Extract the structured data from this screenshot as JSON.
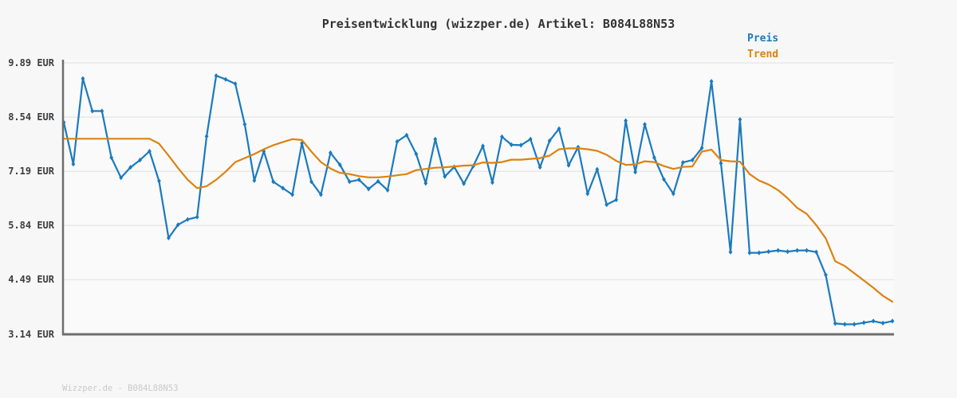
{
  "title": "Preisentwicklung (wizzper.de) Artikel: B084L88N53",
  "footer": "Wizzper.de - B084L88N53",
  "legend": {
    "items": [
      {
        "label": "Preis",
        "color": "#1a7abf"
      },
      {
        "label": "Trend",
        "color": "#dd820f"
      }
    ]
  },
  "colors": {
    "background": "#f7f7f7",
    "plot_background": "#fafafa",
    "gridline": "#e8e8e8",
    "axis_spine": "#6e6e6e",
    "title_text": "#333333",
    "tick_text": "#3d3d3d",
    "footer_text": "#c9c9c9",
    "price_line": "#1a7abf",
    "trend_line": "#dd820f"
  },
  "chart_data": {
    "type": "line",
    "title": "Preisentwicklung (wizzper.de) Artikel: B084L88N53",
    "xlabel": "",
    "ylabel": "",
    "x_type": "even-index",
    "n_points": 88,
    "ylim": [
      3.14,
      9.89
    ],
    "grid": "horizontal",
    "legend_position": "top-right",
    "yticks": [
      {
        "value": 9.89,
        "label": "9.89 EUR"
      },
      {
        "value": 8.54,
        "label": "8.54 EUR"
      },
      {
        "value": 7.19,
        "label": "7.19 EUR"
      },
      {
        "value": 5.84,
        "label": "5.84 EUR"
      },
      {
        "value": 4.49,
        "label": "4.49 EUR"
      },
      {
        "value": 3.14,
        "label": "3.14 EUR"
      }
    ],
    "xticks": [],
    "series": [
      {
        "name": "Preis",
        "color": "#1a7abf",
        "marker": "diamond",
        "values": [
          8.41,
          7.37,
          9.5,
          8.69,
          8.69,
          7.53,
          7.03,
          7.29,
          7.47,
          7.69,
          6.95,
          5.53,
          5.86,
          5.99,
          6.05,
          8.06,
          9.57,
          9.48,
          9.37,
          8.36,
          6.96,
          7.69,
          6.93,
          6.77,
          6.61,
          7.89,
          6.93,
          6.61,
          7.65,
          7.35,
          6.93,
          6.98,
          6.75,
          6.94,
          6.72,
          7.93,
          8.09,
          7.62,
          6.89,
          7.99,
          7.06,
          7.3,
          6.88,
          7.32,
          7.82,
          6.91,
          8.05,
          7.85,
          7.84,
          7.99,
          7.29,
          7.95,
          8.25,
          7.34,
          7.79,
          6.63,
          7.24,
          6.36,
          6.48,
          8.45,
          7.17,
          8.36,
          7.53,
          6.99,
          6.63,
          7.41,
          7.47,
          7.77,
          9.43,
          7.39,
          5.18,
          8.48,
          5.16,
          5.16,
          5.19,
          5.22,
          5.19,
          5.22,
          5.22,
          5.18,
          4.61,
          3.4,
          3.38,
          3.38,
          3.42,
          3.46,
          3.41,
          3.46
        ]
      },
      {
        "name": "Trend",
        "color": "#dd820f",
        "marker": "none",
        "values": [
          8.0,
          8.0,
          8.0,
          8.0,
          8.0,
          8.0,
          8.0,
          8.0,
          8.0,
          8.0,
          7.88,
          7.58,
          7.27,
          6.98,
          6.77,
          6.82,
          6.98,
          7.18,
          7.42,
          7.52,
          7.62,
          7.74,
          7.84,
          7.92,
          7.99,
          7.97,
          7.68,
          7.42,
          7.26,
          7.15,
          7.12,
          7.07,
          7.04,
          7.04,
          7.06,
          7.09,
          7.12,
          7.22,
          7.25,
          7.28,
          7.29,
          7.31,
          7.33,
          7.34,
          7.41,
          7.4,
          7.42,
          7.48,
          7.48,
          7.5,
          7.52,
          7.58,
          7.74,
          7.76,
          7.76,
          7.74,
          7.7,
          7.6,
          7.45,
          7.35,
          7.36,
          7.44,
          7.42,
          7.32,
          7.25,
          7.3,
          7.31,
          7.68,
          7.73,
          7.47,
          7.44,
          7.43,
          7.12,
          6.96,
          6.86,
          6.72,
          6.52,
          6.28,
          6.13,
          5.85,
          5.52,
          4.95,
          4.83,
          4.65,
          4.47,
          4.29,
          4.09,
          3.94
        ]
      }
    ]
  }
}
